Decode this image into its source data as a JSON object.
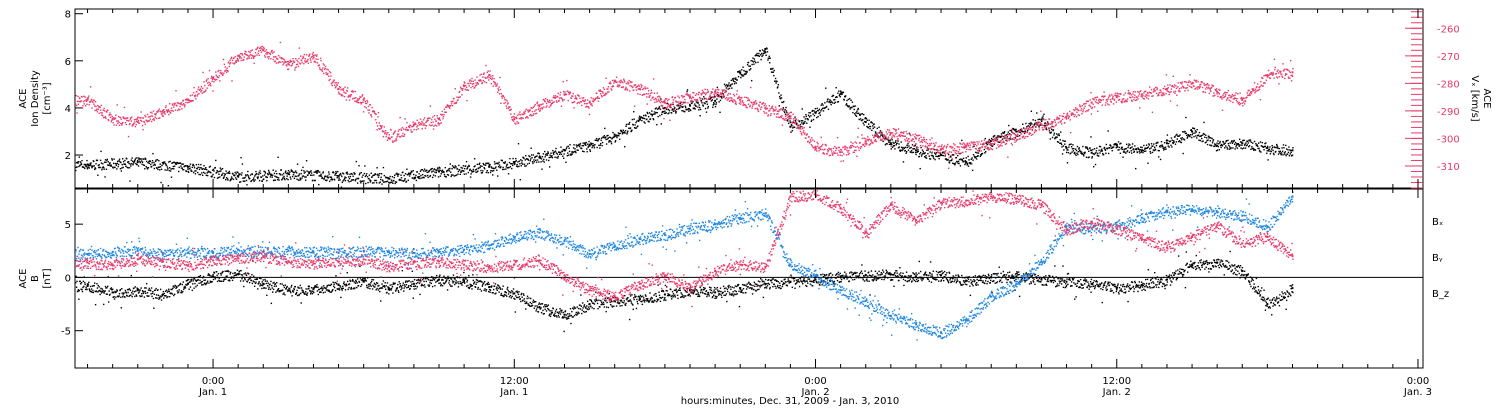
{
  "chart_data": [
    {
      "type": "scatter",
      "panel": "top",
      "ylabel_lines": [
        "ACE",
        "Ion Density",
        "[cm⁻³]"
      ],
      "ylim": [
        0.6,
        8.2
      ],
      "yticks": [
        2,
        4,
        6,
        8
      ],
      "right_axis": {
        "label_lines": [
          "ACE",
          "Vₓ [km/s]"
        ],
        "ylim": [
          -318,
          -253
        ],
        "yticks": [
          -260,
          -270,
          -280,
          -290,
          -300,
          -310
        ],
        "color": "#e83a6a"
      },
      "grid": false,
      "series": [
        {
          "color": "#000000",
          "axis": "left",
          "x": [
            -5,
            -3,
            -1,
            1,
            3,
            5,
            7,
            9,
            11,
            12,
            13,
            14,
            15,
            16,
            17,
            18,
            19,
            20,
            21,
            22,
            23,
            24,
            25,
            26,
            27,
            28,
            29,
            30,
            31,
            32,
            33,
            34,
            35,
            36,
            37,
            38,
            39,
            40,
            41,
            42,
            43
          ],
          "y": [
            1.6,
            1.7,
            1.5,
            1.1,
            1.2,
            1.1,
            1.0,
            1.3,
            1.5,
            1.7,
            1.9,
            2.2,
            2.4,
            2.8,
            3.5,
            4.0,
            4.1,
            4.3,
            5.5,
            6.5,
            3.2,
            3.8,
            4.6,
            3.4,
            2.5,
            2.2,
            2.0,
            1.7,
            2.6,
            3.0,
            3.5,
            2.3,
            2.1,
            2.4,
            2.2,
            2.5,
            3.0,
            2.4,
            2.5,
            2.3,
            2.2
          ]
        },
        {
          "color": "#e83a6a",
          "axis": "right",
          "x": [
            -5,
            -4,
            -3,
            -2,
            -1,
            0,
            1,
            2,
            3,
            4,
            5,
            6,
            7,
            8,
            9,
            10,
            11,
            12,
            13,
            14,
            15,
            16,
            17,
            18,
            19,
            20,
            21,
            22,
            23,
            24,
            25,
            26,
            27,
            28,
            29,
            30,
            31,
            32,
            33,
            34,
            35,
            36,
            37,
            38,
            39,
            40,
            41,
            42,
            43
          ],
          "y": [
            -286,
            -293,
            -294,
            -290,
            -286,
            -278,
            -270,
            -268,
            -273,
            -270,
            -282,
            -286,
            -300,
            -295,
            -293,
            -281,
            -277,
            -293,
            -288,
            -284,
            -287,
            -279,
            -282,
            -287,
            -285,
            -283,
            -286,
            -289,
            -292,
            -303,
            -305,
            -301,
            -298,
            -300,
            -304,
            -303,
            -302,
            -299,
            -295,
            -292,
            -287,
            -285,
            -284,
            -282,
            -280,
            -283,
            -286,
            -277,
            -276
          ]
        }
      ]
    },
    {
      "type": "scatter",
      "panel": "bottom",
      "ylabel_lines": [
        "ACE",
        "B",
        "[nT]"
      ],
      "ylim": [
        -8.5,
        8.3
      ],
      "yticks": [
        5,
        0,
        -5
      ],
      "zero_line": true,
      "grid": false,
      "legend": [
        {
          "text": "Bₓ",
          "color": "#000000"
        },
        {
          "text": "Bᵧ",
          "color": "#1e86e0"
        },
        {
          "text": "B_z",
          "color": "#e83a6a"
        }
      ],
      "series": [
        {
          "name": "Bₓ",
          "color": "#000000",
          "x": [
            -5,
            -4,
            -3,
            -2,
            -1,
            0,
            1,
            2,
            3,
            4,
            5,
            6,
            7,
            8,
            9,
            10,
            11,
            12,
            13,
            14,
            15,
            16,
            17,
            18,
            19,
            20,
            21,
            22,
            23,
            24,
            25,
            26,
            27,
            28,
            29,
            30,
            31,
            32,
            33,
            34,
            35,
            36,
            37,
            38,
            39,
            40,
            41,
            42,
            43
          ],
          "y": [
            -0.8,
            -1.4,
            -1.2,
            -1.6,
            -0.6,
            0.1,
            0.3,
            -0.6,
            -1.2,
            -1.1,
            -0.7,
            -0.4,
            -1.0,
            -0.6,
            -0.2,
            -0.4,
            -0.9,
            -1.5,
            -2.8,
            -3.5,
            -2.5,
            -2.2,
            -2.0,
            -1.6,
            -1.2,
            -1.4,
            -1.0,
            -0.6,
            -0.4,
            -0.2,
            0.1,
            0.2,
            0.3,
            0.1,
            0.2,
            -0.3,
            0.0,
            0.1,
            -0.2,
            -0.4,
            -0.6,
            -1.0,
            -0.7,
            -0.2,
            1.2,
            1.4,
            0.6,
            -2.5,
            -1.0
          ]
        },
        {
          "name": "Bᵧ",
          "color": "#1e86e0",
          "x": [
            -5,
            -4,
            -3,
            -2,
            -1,
            0,
            1,
            2,
            3,
            4,
            5,
            6,
            7,
            8,
            9,
            10,
            11,
            12,
            13,
            14,
            15,
            16,
            17,
            18,
            19,
            20,
            21,
            22,
            23,
            24,
            25,
            26,
            27,
            28,
            29,
            30,
            31,
            32,
            33,
            34,
            35,
            36,
            37,
            38,
            39,
            40,
            41,
            42,
            43
          ],
          "y": [
            2.2,
            2.4,
            2.5,
            2.2,
            2.3,
            2.3,
            2.6,
            2.4,
            2.5,
            2.4,
            2.3,
            2.5,
            2.4,
            2.3,
            2.4,
            2.6,
            3.0,
            3.8,
            4.2,
            3.4,
            2.2,
            3.0,
            3.6,
            4.0,
            4.6,
            5.0,
            5.6,
            6.0,
            1.2,
            0.2,
            -1.2,
            -2.2,
            -3.6,
            -4.4,
            -5.2,
            -4.0,
            -1.8,
            -0.6,
            1.5,
            4.8,
            4.6,
            4.9,
            5.6,
            6.2,
            6.4,
            6.1,
            5.8,
            4.8,
            7.6
          ]
        },
        {
          "name": "B_z",
          "color": "#e83a6a",
          "x": [
            -5,
            -4,
            -3,
            -2,
            -1,
            0,
            1,
            2,
            3,
            4,
            5,
            6,
            7,
            8,
            9,
            10,
            11,
            12,
            13,
            14,
            15,
            16,
            17,
            18,
            19,
            20,
            21,
            22,
            23,
            24,
            25,
            26,
            27,
            28,
            29,
            30,
            31,
            32,
            33,
            34,
            35,
            36,
            37,
            38,
            39,
            40,
            41,
            42,
            43
          ],
          "y": [
            1.4,
            1.2,
            1.7,
            1.5,
            1.1,
            1.6,
            1.8,
            2.0,
            1.5,
            1.3,
            1.5,
            1.7,
            1.0,
            1.4,
            1.5,
            1.2,
            1.0,
            1.2,
            1.6,
            0.2,
            -1.2,
            -1.8,
            -0.6,
            0.2,
            -1.0,
            0.6,
            1.2,
            1.0,
            7.6,
            7.8,
            6.5,
            4.2,
            6.8,
            5.4,
            7.0,
            7.2,
            7.6,
            7.4,
            6.8,
            4.5,
            5.2,
            4.6,
            3.6,
            2.8,
            3.8,
            4.9,
            3.2,
            3.8,
            2.0
          ]
        }
      ]
    }
  ],
  "x_axis": {
    "xlim": [
      -5.5,
      48.2
    ],
    "ticks": [
      {
        "x": 0,
        "time": "0:00",
        "date": "Jan. 1"
      },
      {
        "x": 12,
        "time": "12:00",
        "date": "Jan. 1"
      },
      {
        "x": 24,
        "time": "0:00",
        "date": "Jan. 2"
      },
      {
        "x": 36,
        "time": "12:00",
        "date": "Jan. 2"
      },
      {
        "x": 48,
        "time": "0:00",
        "date": "Jan. 3"
      }
    ],
    "minor_step": 1,
    "xlabel": "hours:minutes, Dec. 31, 2009 - Jan.  3, 2010"
  }
}
